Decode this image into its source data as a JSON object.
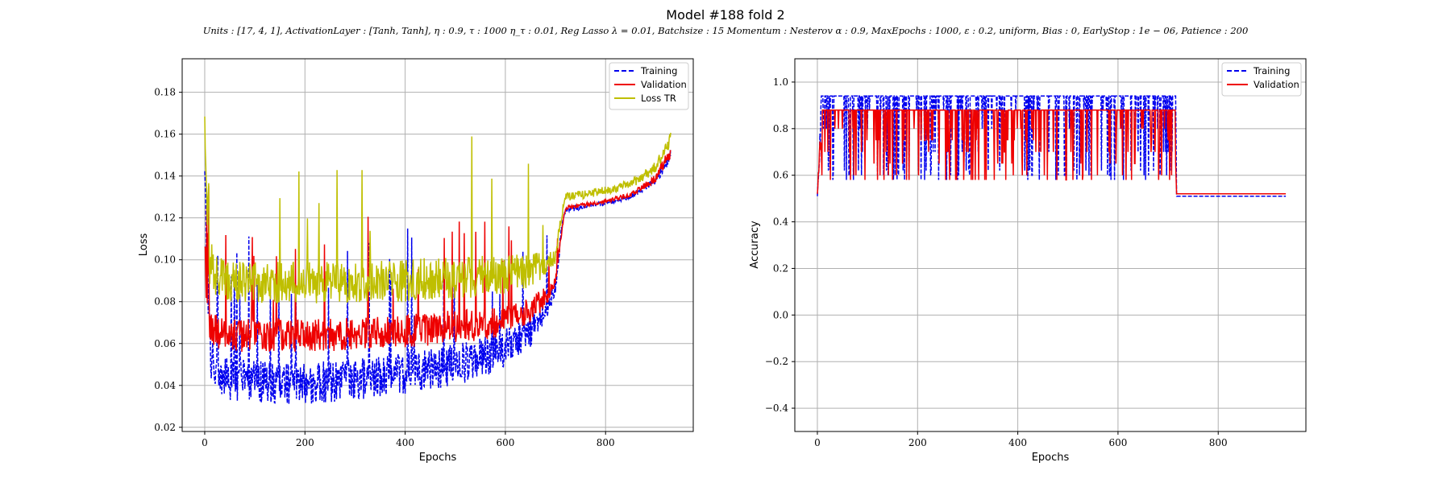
{
  "figure": {
    "title": "Model #188 fold 2",
    "subtitle": "Units : [17, 4, 1], ActivationLayer : [Tanh, Tanh], η : 0.9, τ : 1000 η_τ : 0.01, Reg Lasso λ = 0.01, Batchsize : 15 Momentum : Nesterov α : 0.9, MaxEpochs : 1000, ε : 0.2, uniform, Bias : 0, EarlyStop : 1e − 06, Patience : 200"
  },
  "chart_data": [
    {
      "type": "line",
      "xlabel": "Epochs",
      "ylabel": "Loss",
      "xlim": [
        -45,
        975
      ],
      "ylim": [
        0.018,
        0.196
      ],
      "xticks": [
        0,
        200,
        400,
        600,
        800
      ],
      "yticks": [
        0.02,
        0.04,
        0.06,
        0.08,
        0.1,
        0.12,
        0.14,
        0.16,
        0.18
      ],
      "ytick_labels": [
        "0.02",
        "0.04",
        "0.06",
        "0.08",
        "0.10",
        "0.12",
        "0.14",
        "0.16",
        "0.18"
      ],
      "grid": true,
      "legend_position": "top-right",
      "series": [
        {
          "name": "Training",
          "color": "#0000ee",
          "style": "dashed",
          "x": [
            0,
            5,
            10,
            20,
            50,
            100,
            150,
            200,
            250,
            300,
            350,
            400,
            450,
            500,
            550,
            600,
            650,
            680,
            700,
            710,
            720,
            750,
            800,
            850,
            900,
            930
          ],
          "mid": [
            0.135,
            0.1,
            0.06,
            0.045,
            0.043,
            0.042,
            0.041,
            0.041,
            0.042,
            0.043,
            0.044,
            0.046,
            0.048,
            0.05,
            0.053,
            0.058,
            0.066,
            0.075,
            0.088,
            0.11,
            0.124,
            0.125,
            0.127,
            0.13,
            0.138,
            0.15
          ],
          "spread": [
            0.01,
            0.02,
            0.014,
            0.01,
            0.01,
            0.01,
            0.01,
            0.01,
            0.01,
            0.01,
            0.01,
            0.01,
            0.01,
            0.01,
            0.01,
            0.009,
            0.008,
            0.006,
            0.004,
            0.003,
            0.002,
            0.001,
            0.001,
            0.001,
            0.002,
            0.003
          ]
        },
        {
          "name": "Validation",
          "color": "#ee0000",
          "style": "solid",
          "x": [
            0,
            5,
            10,
            20,
            50,
            100,
            150,
            200,
            250,
            300,
            350,
            400,
            450,
            500,
            550,
            600,
            650,
            680,
            700,
            710,
            720,
            750,
            800,
            850,
            900,
            930
          ],
          "mid": [
            0.12,
            0.095,
            0.07,
            0.066,
            0.064,
            0.064,
            0.064,
            0.064,
            0.064,
            0.065,
            0.065,
            0.066,
            0.067,
            0.068,
            0.069,
            0.071,
            0.076,
            0.082,
            0.09,
            0.11,
            0.125,
            0.126,
            0.128,
            0.131,
            0.139,
            0.152
          ],
          "spread": [
            0.02,
            0.03,
            0.01,
            0.008,
            0.008,
            0.008,
            0.008,
            0.008,
            0.008,
            0.008,
            0.008,
            0.008,
            0.008,
            0.008,
            0.008,
            0.007,
            0.006,
            0.005,
            0.003,
            0.002,
            0.001,
            0.001,
            0.001,
            0.001,
            0.002,
            0.003
          ]
        },
        {
          "name": "Loss TR",
          "color": "#bfbf00",
          "style": "solid",
          "x": [
            0,
            5,
            10,
            20,
            50,
            100,
            150,
            200,
            250,
            300,
            350,
            400,
            450,
            500,
            550,
            600,
            650,
            680,
            700,
            710,
            720,
            750,
            800,
            850,
            900,
            930
          ],
          "mid": [
            0.17,
            0.14,
            0.1,
            0.092,
            0.09,
            0.089,
            0.089,
            0.089,
            0.089,
            0.089,
            0.09,
            0.09,
            0.091,
            0.091,
            0.092,
            0.093,
            0.095,
            0.098,
            0.102,
            0.118,
            0.13,
            0.131,
            0.133,
            0.136,
            0.144,
            0.158
          ],
          "spread": [
            0.015,
            0.03,
            0.015,
            0.01,
            0.01,
            0.01,
            0.01,
            0.01,
            0.01,
            0.01,
            0.01,
            0.01,
            0.01,
            0.01,
            0.01,
            0.009,
            0.008,
            0.006,
            0.004,
            0.002,
            0.002,
            0.002,
            0.002,
            0.002,
            0.003,
            0.004
          ]
        }
      ]
    },
    {
      "type": "line",
      "xlabel": "Epochs",
      "ylabel": "Accuracy",
      "xlim": [
        -45,
        975
      ],
      "ylim": [
        -0.5,
        1.1
      ],
      "xticks": [
        0,
        200,
        400,
        600,
        800
      ],
      "yticks": [
        -0.4,
        -0.2,
        0.0,
        0.2,
        0.4,
        0.6,
        0.8,
        1.0
      ],
      "ytick_labels": [
        "−0.4",
        "−0.2",
        "0.0",
        "0.2",
        "0.4",
        "0.6",
        "0.8",
        "1.0"
      ],
      "grid": true,
      "legend_position": "top-right",
      "series": [
        {
          "name": "Training",
          "color": "#0000ee",
          "style": "dashed",
          "high": 0.94,
          "low_values": [
            0.58,
            0.6,
            0.62,
            0.7,
            0.8,
            0.88
          ],
          "start": 0.51,
          "drop_epoch": 715,
          "final": 0.51,
          "end_epoch": 935
        },
        {
          "name": "Validation",
          "color": "#ee0000",
          "style": "solid",
          "high": 0.88,
          "low_values": [
            0.58,
            0.6,
            0.65,
            0.7,
            0.75,
            0.8
          ],
          "start": 0.52,
          "drop_epoch": 715,
          "final": 0.52,
          "end_epoch": 935
        }
      ]
    }
  ]
}
